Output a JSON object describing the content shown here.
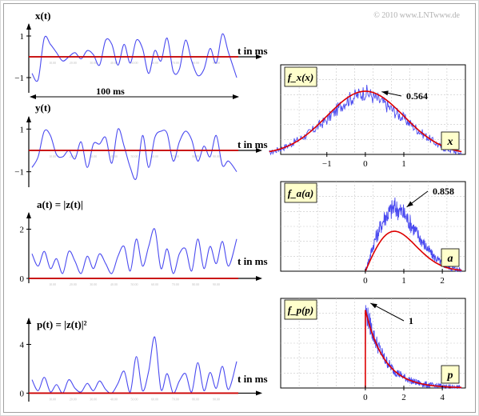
{
  "copyright": "© 2010 www.LNTwww.de",
  "colors": {
    "signal": "#4a4af0",
    "axis": "#000000",
    "mean": "#cc0000",
    "pdf_fit": "#dd0000",
    "label_bg": "#ffffcc",
    "grid": "#c8c8c8"
  },
  "left_panels": [
    {
      "ylabel": "x(t)",
      "xlabel": "t in ms",
      "yticks": [
        "1",
        "−1"
      ],
      "span_label": "100 ms"
    },
    {
      "ylabel": "y(t)",
      "xlabel": "t in ms",
      "yticks": [
        "1",
        "−1"
      ]
    },
    {
      "ylabel": "a(t) = |z(t)|",
      "xlabel": "t in ms",
      "yticks": [
        "2",
        "0"
      ]
    },
    {
      "ylabel": "p(t) = |z(t)|²",
      "xlabel": "t in ms",
      "yticks": [
        "4",
        "0"
      ]
    }
  ],
  "chart_data": [
    {
      "type": "line",
      "ylabel": "x(t)",
      "xlabel": "t in ms",
      "x": [
        0,
        3,
        6,
        9,
        12,
        15,
        18,
        21,
        24,
        27,
        30,
        33,
        36,
        39,
        42,
        45,
        48,
        51,
        54,
        57,
        60,
        63,
        66,
        69,
        72,
        75,
        78,
        81,
        84,
        87,
        90,
        93,
        96,
        100
      ],
      "y": [
        -0.8,
        -1.1,
        0.9,
        0.6,
        0.2,
        -0.2,
        0.0,
        0.2,
        -0.1,
        0.3,
        0.1,
        -0.4,
        0.8,
        0.6,
        -0.4,
        0.6,
        -0.3,
        0.8,
        0.4,
        -0.8,
        0.3,
        -0.2,
        0.9,
        -0.7,
        -0.6,
        0.8,
        -0.2,
        -0.9,
        -0.6,
        0.4,
        -0.3,
        1.1,
        0.2,
        -1.0
      ],
      "xlim": [
        0,
        100
      ],
      "ylim": [
        -1.5,
        1.5
      ],
      "mean_line": 0
    },
    {
      "type": "line",
      "ylabel": "y(t)",
      "xlabel": "t in ms",
      "x": [
        0,
        3,
        6,
        9,
        12,
        15,
        18,
        21,
        24,
        27,
        30,
        33,
        36,
        39,
        42,
        45,
        48,
        51,
        54,
        57,
        60,
        63,
        66,
        69,
        72,
        75,
        78,
        81,
        84,
        87,
        90,
        93,
        96,
        100
      ],
      "y": [
        -0.8,
        -0.3,
        0.9,
        0.7,
        -0.2,
        -0.3,
        0.0,
        -0.4,
        0.4,
        -0.8,
        0.3,
        0.3,
        0.6,
        -0.6,
        1.0,
        0.2,
        -0.8,
        -1.3,
        0.7,
        -0.8,
        0.6,
        0.9,
        0.8,
        -0.5,
        0.4,
        0.9,
        0.5,
        -0.5,
        0.2,
        -0.3,
        0.7,
        -0.7,
        -0.5,
        -1.0
      ],
      "xlim": [
        0,
        100
      ],
      "ylim": [
        -1.5,
        1.5
      ],
      "mean_line": 0
    },
    {
      "type": "line",
      "ylabel": "a(t) = |z(t)|",
      "xlabel": "t in ms",
      "x": [
        0,
        3,
        6,
        9,
        12,
        15,
        18,
        21,
        24,
        27,
        30,
        33,
        36,
        39,
        42,
        45,
        48,
        51,
        54,
        57,
        60,
        63,
        66,
        69,
        72,
        75,
        78,
        81,
        84,
        87,
        90,
        93,
        96,
        100
      ],
      "y": [
        1.0,
        0.5,
        1.1,
        0.4,
        0.8,
        0.2,
        1.1,
        0.7,
        0.2,
        0.9,
        0.4,
        1.0,
        0.6,
        0.2,
        0.9,
        1.3,
        0.3,
        1.6,
        0.5,
        1.3,
        2.0,
        0.4,
        1.2,
        0.2,
        1.0,
        1.2,
        0.3,
        1.6,
        0.4,
        1.3,
        0.6,
        1.5,
        0.5,
        1.6
      ],
      "xlim": [
        0,
        100
      ],
      "ylim": [
        0,
        2.6
      ],
      "mean_line": 0
    },
    {
      "type": "line",
      "ylabel": "p(t) = |z(t)|²",
      "xlabel": "t in ms",
      "x": [
        0,
        3,
        6,
        9,
        12,
        15,
        18,
        21,
        24,
        27,
        30,
        33,
        36,
        39,
        42,
        45,
        48,
        51,
        54,
        57,
        60,
        63,
        66,
        69,
        72,
        75,
        78,
        81,
        84,
        87,
        90,
        93,
        96,
        100
      ],
      "y": [
        1.1,
        0.2,
        1.3,
        0.1,
        0.7,
        0.0,
        1.1,
        0.4,
        0.1,
        0.8,
        0.2,
        1.0,
        0.3,
        0.0,
        0.8,
        1.8,
        0.1,
        3.0,
        0.2,
        1.8,
        4.6,
        0.3,
        1.6,
        0.0,
        1.0,
        1.6,
        0.1,
        2.5,
        0.2,
        1.7,
        0.4,
        2.2,
        0.3,
        2.6
      ],
      "xlim": [
        0,
        100
      ],
      "ylim": [
        -0.3,
        6
      ],
      "mean_line": 0
    },
    {
      "type": "area",
      "label": "f_x(x)",
      "var": "x",
      "annotation": "0.564",
      "fit": {
        "kind": "gaussian",
        "amplitude": 0.564
      },
      "x": [
        -2.5,
        -2.0,
        -1.5,
        -1.0,
        -0.5,
        0.0,
        0.5,
        1.0,
        1.5,
        2.0,
        2.5
      ],
      "y": [
        0.01,
        0.08,
        0.18,
        0.31,
        0.48,
        0.56,
        0.45,
        0.32,
        0.18,
        0.06,
        0.01
      ],
      "xticks": [
        "−1",
        "0",
        "1"
      ],
      "xlim": [
        -2.2,
        2.6
      ],
      "ylim": [
        0,
        0.8
      ]
    },
    {
      "type": "area",
      "label": "f_a(a)",
      "var": "a",
      "annotation": "0.858",
      "fit": {
        "kind": "rayleigh",
        "peak": 0.858
      },
      "x": [
        0,
        0.25,
        0.5,
        0.75,
        1.0,
        1.25,
        1.5,
        1.75,
        2.0,
        2.25,
        2.5
      ],
      "y": [
        0.0,
        0.42,
        0.72,
        0.86,
        0.77,
        0.58,
        0.38,
        0.21,
        0.1,
        0.04,
        0.01
      ],
      "xticks": [
        "0",
        "1",
        "2"
      ],
      "xlim": [
        -2.2,
        2.6
      ],
      "ylim": [
        0,
        1.2
      ]
    },
    {
      "type": "area",
      "label": "f_p(p)",
      "var": "p",
      "annotation": "1",
      "fit": {
        "kind": "exponential",
        "peak": 1
      },
      "x": [
        0,
        0.5,
        1.0,
        1.5,
        2.0,
        2.5,
        3.0,
        3.5,
        4.0,
        4.5,
        5.0
      ],
      "y": [
        1.0,
        0.62,
        0.37,
        0.22,
        0.14,
        0.08,
        0.05,
        0.03,
        0.02,
        0.01,
        0.0
      ],
      "xticks": [
        "0",
        "2",
        "4"
      ],
      "xlim": [
        -4.4,
        5.2
      ],
      "ylim": [
        0,
        1.15
      ]
    }
  ]
}
